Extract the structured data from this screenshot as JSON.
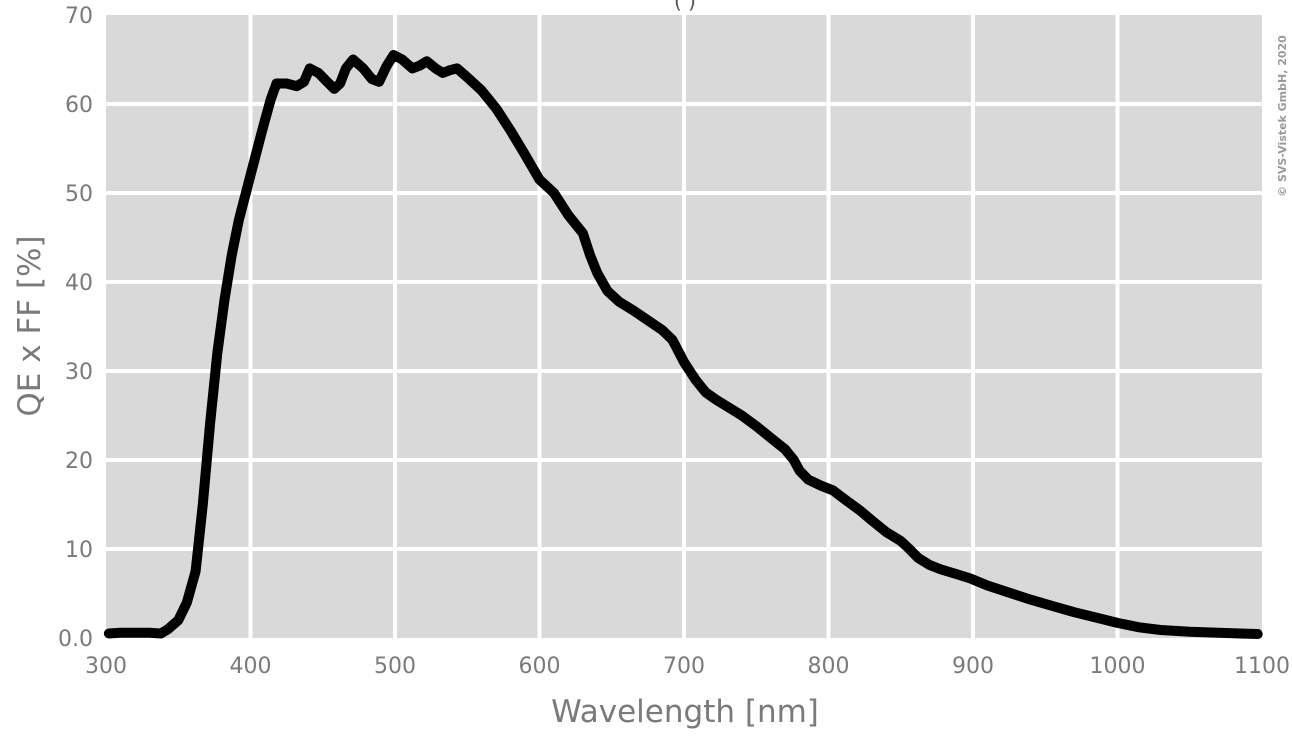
{
  "chart_data": {
    "type": "line",
    "title": "",
    "xlabel": "Wavelength [nm]",
    "ylabel": "QE x FF [%]",
    "xlim": [
      300,
      1100
    ],
    "ylim": [
      0,
      70
    ],
    "x_ticks": [
      300,
      400,
      500,
      600,
      700,
      800,
      900,
      1000,
      1100
    ],
    "x_tick_labels": [
      "300",
      "400",
      "500",
      "600",
      "700",
      "800",
      "900",
      "1000",
      "1100"
    ],
    "y_ticks": [
      0,
      10,
      20,
      30,
      40,
      50,
      60,
      70
    ],
    "y_tick_labels": [
      "0.0",
      "10",
      "20",
      "30",
      "40",
      "50",
      "60",
      "70"
    ],
    "grid": true,
    "colors": {
      "plot_background": "#d9d9d9",
      "grid": "#ffffff",
      "line": "#000000",
      "text": "#7a7a7a"
    },
    "series": [
      {
        "points": [
          [
            302,
            0.5
          ],
          [
            310,
            0.6
          ],
          [
            320,
            0.6
          ],
          [
            330,
            0.6
          ],
          [
            338,
            0.5
          ],
          [
            343,
            1.0
          ],
          [
            350,
            2.0
          ],
          [
            356,
            4.0
          ],
          [
            362,
            7.5
          ],
          [
            367,
            15
          ],
          [
            372,
            24
          ],
          [
            377,
            32
          ],
          [
            382,
            38
          ],
          [
            387,
            43
          ],
          [
            392,
            47
          ],
          [
            400,
            52
          ],
          [
            408,
            57
          ],
          [
            414,
            60.5
          ],
          [
            418,
            62.3
          ],
          [
            425,
            62.3
          ],
          [
            432,
            62.0
          ],
          [
            437,
            62.5
          ],
          [
            441,
            64.0
          ],
          [
            447,
            63.5
          ],
          [
            453,
            62.5
          ],
          [
            458,
            61.7
          ],
          [
            462,
            62.3
          ],
          [
            466,
            64.0
          ],
          [
            471,
            65.0
          ],
          [
            478,
            64.0
          ],
          [
            484,
            62.8
          ],
          [
            489,
            62.5
          ],
          [
            494,
            64.2
          ],
          [
            499,
            65.5
          ],
          [
            505,
            65.0
          ],
          [
            512,
            64.0
          ],
          [
            517,
            64.3
          ],
          [
            522,
            64.8
          ],
          [
            528,
            64.0
          ],
          [
            533,
            63.5
          ],
          [
            538,
            63.8
          ],
          [
            543,
            64.0
          ],
          [
            550,
            63.0
          ],
          [
            560,
            61.5
          ],
          [
            570,
            59.5
          ],
          [
            580,
            57.0
          ],
          [
            590,
            54.3
          ],
          [
            600,
            51.5
          ],
          [
            610,
            50.0
          ],
          [
            620,
            47.5
          ],
          [
            630,
            45.5
          ],
          [
            635,
            43
          ],
          [
            640,
            41
          ],
          [
            647,
            39
          ],
          [
            655,
            37.8
          ],
          [
            665,
            36.8
          ],
          [
            675,
            35.7
          ],
          [
            685,
            34.6
          ],
          [
            692,
            33.5
          ],
          [
            700,
            31
          ],
          [
            708,
            29
          ],
          [
            715,
            27.6
          ],
          [
            722,
            26.8
          ],
          [
            730,
            26.0
          ],
          [
            740,
            25.0
          ],
          [
            750,
            23.8
          ],
          [
            760,
            22.5
          ],
          [
            770,
            21.2
          ],
          [
            776,
            20
          ],
          [
            780,
            18.8
          ],
          [
            786,
            17.8
          ],
          [
            795,
            17.1
          ],
          [
            803,
            16.6
          ],
          [
            812,
            15.5
          ],
          [
            822,
            14.3
          ],
          [
            830,
            13.2
          ],
          [
            840,
            11.9
          ],
          [
            850,
            10.9
          ],
          [
            856,
            10.0
          ],
          [
            862,
            9.0
          ],
          [
            870,
            8.2
          ],
          [
            878,
            7.7
          ],
          [
            888,
            7.2
          ],
          [
            898,
            6.7
          ],
          [
            910,
            5.9
          ],
          [
            925,
            5.1
          ],
          [
            940,
            4.3
          ],
          [
            955,
            3.6
          ],
          [
            970,
            2.9
          ],
          [
            985,
            2.3
          ],
          [
            1000,
            1.7
          ],
          [
            1015,
            1.2
          ],
          [
            1030,
            0.9
          ],
          [
            1050,
            0.7
          ],
          [
            1070,
            0.6
          ],
          [
            1085,
            0.5
          ],
          [
            1097,
            0.45
          ]
        ]
      }
    ]
  },
  "copyright": "© SVS-Vistek GmbH, 2020",
  "top_text_fragment": "(                                                    )"
}
